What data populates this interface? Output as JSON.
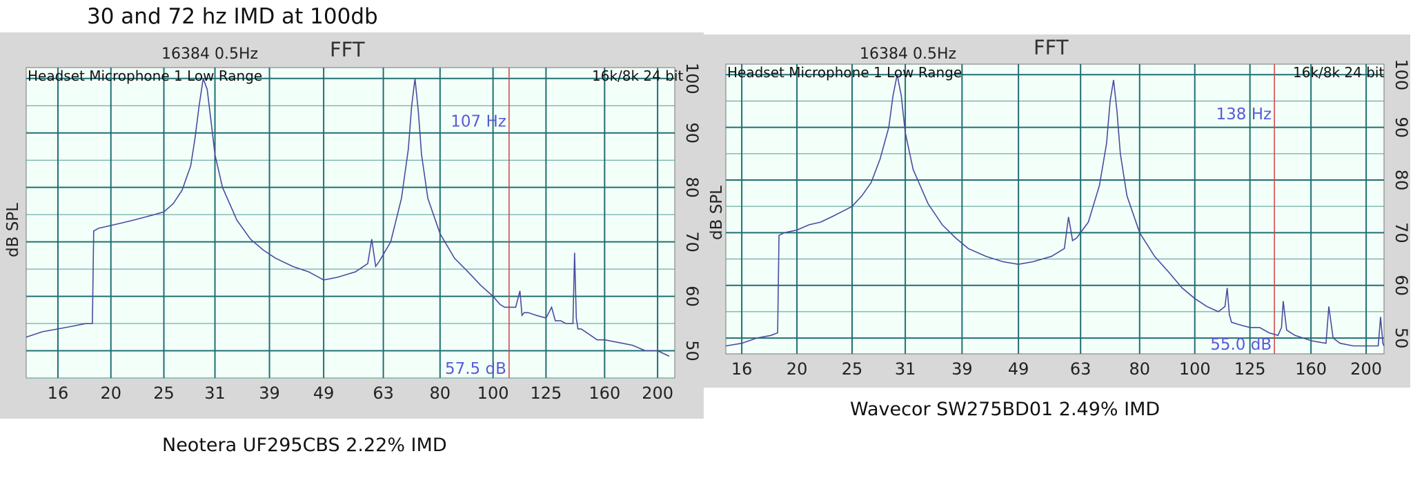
{
  "page_title": "30 and 72 hz IMD at 100db",
  "chart_data": [
    {
      "type": "line",
      "title": "FFT",
      "fft_settings": "16384  0.5Hz",
      "source_label": "Headset Microphone 1 Low Range",
      "format_label": "16k/8k 24 bit",
      "ylabel": "dB SPL",
      "x_scale": "log",
      "x_ticks": [
        "16",
        "20",
        "25",
        "31",
        "39",
        "49",
        "63",
        "80",
        "100",
        "125",
        "160",
        "200"
      ],
      "y_ticks": [
        "100",
        "90",
        "80",
        "70",
        "60",
        "50"
      ],
      "xlim": [
        14,
        215
      ],
      "ylim": [
        45,
        102
      ],
      "grid": true,
      "cursor_freq_label": "107 Hz",
      "cursor_level_label": "57.5 dB",
      "cursor_freq": 107,
      "caption": "Neotera UF295CBS 2.22% IMD",
      "series": [
        {
          "color": "#4a4aa0",
          "x": [
            14,
            15,
            16,
            17,
            18,
            18.5,
            18.6,
            19,
            20,
            21,
            22,
            23,
            24,
            25,
            26,
            27,
            28,
            28.5,
            29,
            29.5,
            30,
            30.5,
            31,
            32,
            34,
            36,
            38,
            40,
            43,
            46,
            49,
            52,
            56,
            59,
            60,
            61,
            62,
            65,
            68,
            70,
            71,
            72,
            73,
            74,
            76,
            80,
            85,
            90,
            95,
            100,
            103,
            105,
            107,
            110,
            112,
            113,
            114,
            116,
            120,
            125,
            128,
            130,
            133,
            136,
            138,
            140,
            141,
            142,
            143,
            145,
            150,
            155,
            160,
            170,
            180,
            190,
            200,
            205,
            210
          ],
          "y": [
            52.5,
            53.5,
            54,
            54.5,
            55,
            55,
            72,
            72.5,
            73,
            73.5,
            74,
            74.5,
            75,
            75.5,
            77,
            79.5,
            84,
            89,
            95,
            100,
            98,
            92,
            86,
            80,
            74,
            70.5,
            68.5,
            67,
            65.5,
            64.5,
            63,
            63.5,
            64.5,
            66,
            70.5,
            65.5,
            66.5,
            70,
            78,
            87,
            95,
            100,
            94,
            86,
            78,
            71.5,
            67,
            64.5,
            62,
            60,
            58.5,
            58,
            58,
            58,
            61,
            56.5,
            57,
            57,
            56.5,
            56,
            58,
            55.5,
            55.5,
            55,
            55,
            55,
            68,
            56,
            54,
            54,
            53,
            52,
            52,
            51.5,
            51,
            50,
            50,
            49.5,
            49
          ]
        }
      ]
    },
    {
      "type": "line",
      "title": "FFT",
      "fft_settings": "16384  0.5Hz",
      "source_label": "Headset Microphone 1 Low Range",
      "format_label": "16k/8k 24 bit",
      "ylabel": "dB SPL",
      "x_scale": "log",
      "x_ticks": [
        "16",
        "20",
        "25",
        "31",
        "39",
        "49",
        "63",
        "80",
        "100",
        "125",
        "160",
        "200"
      ],
      "y_ticks": [
        "100",
        "90",
        "80",
        "70",
        "60",
        "50"
      ],
      "xlim": [
        15,
        215
      ],
      "ylim": [
        47,
        102
      ],
      "grid": true,
      "cursor_freq_label": "138 Hz",
      "cursor_level_label": "55.0 dB",
      "cursor_freq": 138,
      "caption": "Wavecor SW275BD01 2.49% IMD",
      "series": [
        {
          "color": "#4a4aa0",
          "x": [
            15,
            16,
            17,
            18,
            18.5,
            18.6,
            19,
            20,
            21,
            22,
            23,
            24,
            25,
            26,
            27,
            28,
            29,
            29.5,
            30,
            30.5,
            31,
            32,
            34,
            36,
            38,
            40,
            43,
            46,
            49,
            52,
            56,
            59,
            60,
            61,
            62,
            65,
            68,
            70,
            71,
            72,
            73,
            74,
            76,
            80,
            85,
            90,
            95,
            100,
            105,
            110,
            113,
            114,
            115,
            116,
            120,
            125,
            130,
            135,
            140,
            142,
            143,
            145,
            150,
            155,
            160,
            170,
            172,
            175,
            180,
            190,
            200,
            210,
            212,
            214,
            215
          ],
          "y": [
            48.5,
            49,
            50,
            50.5,
            51,
            69.5,
            70,
            70.5,
            71.5,
            72,
            73,
            74,
            75,
            77,
            79.5,
            84,
            90,
            96,
            100,
            96,
            89,
            82,
            75.5,
            71.5,
            69,
            67,
            65.5,
            64.5,
            64,
            64.5,
            65.5,
            67,
            73,
            68.5,
            69,
            72,
            79,
            87,
            95,
            99,
            93,
            85,
            77,
            70,
            65.5,
            62.5,
            59.5,
            57.5,
            56,
            55,
            56,
            59.5,
            54.5,
            53,
            52.5,
            52,
            52,
            51,
            50.5,
            52,
            57,
            51.5,
            50.5,
            50,
            49.5,
            49,
            56,
            50,
            49,
            48.5,
            48.5,
            48.5,
            54,
            49,
            48.5
          ]
        }
      ]
    }
  ]
}
